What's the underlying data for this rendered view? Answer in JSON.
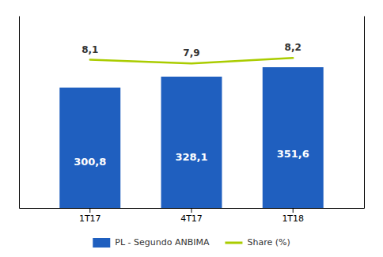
{
  "chart_data": {
    "type": "bar",
    "categories": [
      "1T17",
      "4T17",
      "1T18"
    ],
    "series": [
      {
        "name": "PL - Segundo ANBIMA",
        "type": "bar",
        "color": "#1F5FBF",
        "values": [
          300.8,
          328.1,
          351.6
        ],
        "value_labels": [
          "300,8",
          "328,1",
          "351,6"
        ]
      },
      {
        "name": "Share (%)",
        "type": "line",
        "axis": "y2",
        "color": "#AACC00",
        "values": [
          8.1,
          7.9,
          8.2
        ],
        "value_labels": [
          "8,1",
          "7,9",
          "8,2"
        ]
      }
    ],
    "ylim": [
      0,
      480
    ],
    "y2lim": [
      0,
      10.5
    ],
    "data_labels": true,
    "tick_labels": "x",
    "legend": "bottom"
  }
}
